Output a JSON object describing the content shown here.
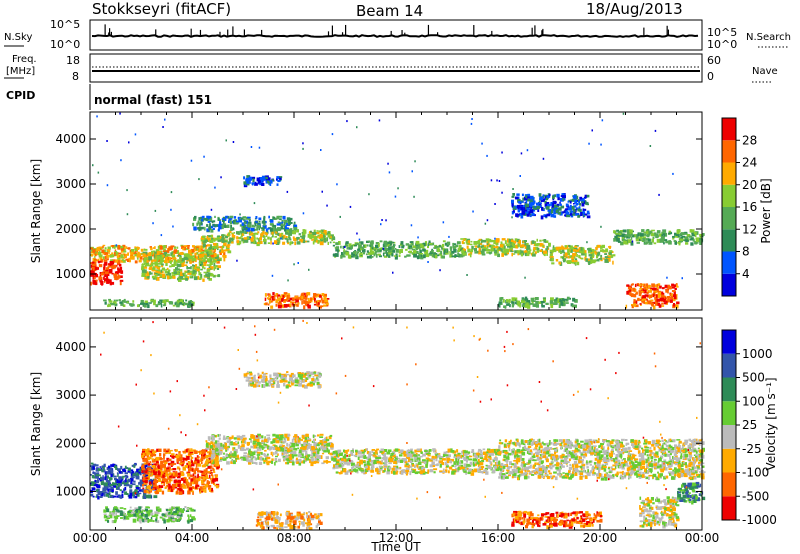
{
  "header": {
    "station": "Stokkseyri (fitACF)",
    "beam": "Beam 14",
    "date": "18/Aug/2013"
  },
  "noise_panel": {
    "left_label": "N.Sky",
    "left_ticks": [
      "10^5",
      "10^0"
    ],
    "right_ticks": [
      "10^5",
      "10^0"
    ],
    "right_label": "N.Search"
  },
  "freq_panel": {
    "left_label_1": "Freq.",
    "left_label_2": "[MHz]",
    "left_ticks": [
      "18",
      "8"
    ],
    "right_ticks": [
      "60",
      "0"
    ],
    "right_label": "Nave"
  },
  "cpid": {
    "label": "CPID",
    "mode": "normal (fast) 151"
  },
  "chart_data": [
    {
      "type": "heatmap",
      "quantity": "Power",
      "ylabel": "Slant Range [km]",
      "xlabel": "",
      "x_ticks": [
        "00:00",
        "04:00",
        "08:00",
        "12:00",
        "16:00",
        "20:00",
        "00:00"
      ],
      "y_ticks": [
        "1000",
        "2000",
        "3000",
        "4000"
      ],
      "ylim": [
        200,
        4600
      ],
      "xlim": [
        0,
        24
      ],
      "colorbar": {
        "label": "Power [dB]",
        "ticks": [
          "28",
          "24",
          "20",
          "16",
          "12",
          "8",
          "4"
        ],
        "colors": [
          "#0000dd",
          "#0055ff",
          "#2e8b57",
          "#55aa55",
          "#88cc33",
          "#ffaa00",
          "#ff6600",
          "#ee0000"
        ]
      },
      "echo_bands": [
        {
          "t0": 0.0,
          "t1": 5.3,
          "r0": 1300,
          "r1": 1650,
          "level": 5
        },
        {
          "t0": 0.0,
          "t1": 1.2,
          "r0": 800,
          "r1": 1300,
          "level": 7
        },
        {
          "t0": 2.0,
          "t1": 5.0,
          "r0": 900,
          "r1": 1500,
          "level": 4
        },
        {
          "t0": 4.3,
          "t1": 5.4,
          "r0": 1500,
          "r1": 1900,
          "level": 4
        },
        {
          "t0": 5.3,
          "t1": 9.5,
          "r0": 1700,
          "r1": 2000,
          "level": 4
        },
        {
          "t0": 9.5,
          "t1": 14.5,
          "r0": 1400,
          "r1": 1750,
          "level": 3
        },
        {
          "t0": 14.5,
          "t1": 18.0,
          "r0": 1450,
          "r1": 1800,
          "level": 4
        },
        {
          "t0": 18.0,
          "t1": 20.5,
          "r0": 1250,
          "r1": 1650,
          "level": 4
        },
        {
          "t0": 20.5,
          "t1": 24.0,
          "r0": 1700,
          "r1": 2000,
          "level": 3
        },
        {
          "t0": 6.8,
          "t1": 9.3,
          "r0": 300,
          "r1": 600,
          "level": 6
        },
        {
          "t0": 16.0,
          "t1": 19.0,
          "r0": 300,
          "r1": 500,
          "level": 3
        },
        {
          "t0": 21.0,
          "t1": 23.0,
          "r0": 300,
          "r1": 800,
          "level": 6
        },
        {
          "t0": 0.5,
          "t1": 4.0,
          "r0": 300,
          "r1": 450,
          "level": 3
        },
        {
          "t0": 4.0,
          "t1": 8.0,
          "r0": 2000,
          "r1": 2300,
          "level": 2
        },
        {
          "t0": 16.5,
          "t1": 19.5,
          "r0": 2300,
          "r1": 2800,
          "level": 1
        },
        {
          "t0": 6.0,
          "t1": 7.5,
          "r0": 3000,
          "r1": 3200,
          "level": 1
        }
      ]
    },
    {
      "type": "heatmap",
      "quantity": "Velocity",
      "ylabel": "Slant Range [km]",
      "xlabel": "Time UT",
      "x_ticks": [
        "00:00",
        "04:00",
        "08:00",
        "12:00",
        "16:00",
        "20:00",
        "00:00"
      ],
      "y_ticks": [
        "1000",
        "2000",
        "3000",
        "4000"
      ],
      "ylim": [
        200,
        4600
      ],
      "xlim": [
        0,
        24
      ],
      "colorbar": {
        "label": "Velocity [m s⁻¹]",
        "ticks": [
          "1000",
          "500",
          "100",
          "25",
          "-25",
          "-100",
          "-500",
          "-1000"
        ],
        "colors": [
          "#ee0000",
          "#ff6600",
          "#ffaa00",
          "#bbbbbb",
          "#66cc33",
          "#2e8b57",
          "#3355aa",
          "#0000dd"
        ]
      },
      "echo_bands": [
        {
          "t0": 0.0,
          "t1": 2.5,
          "r0": 900,
          "r1": 1600,
          "level": 6
        },
        {
          "t0": 2.0,
          "t1": 5.0,
          "r0": 1000,
          "r1": 1900,
          "level": 1
        },
        {
          "t0": 4.5,
          "t1": 9.5,
          "r0": 1600,
          "r1": 2200,
          "level": 3
        },
        {
          "t0": 9.5,
          "t1": 16.0,
          "r0": 1400,
          "r1": 1900,
          "level": 3
        },
        {
          "t0": 16.0,
          "t1": 24.0,
          "r0": 1300,
          "r1": 2100,
          "level": 3
        },
        {
          "t0": 0.5,
          "t1": 4.0,
          "r0": 400,
          "r1": 700,
          "level": 4
        },
        {
          "t0": 6.5,
          "t1": 9.0,
          "r0": 250,
          "r1": 600,
          "level": 2
        },
        {
          "t0": 16.5,
          "t1": 20.0,
          "r0": 300,
          "r1": 600,
          "level": 1
        },
        {
          "t0": 21.5,
          "t1": 23.0,
          "r0": 300,
          "r1": 900,
          "level": 3
        },
        {
          "t0": 23.0,
          "t1": 24.0,
          "r0": 800,
          "r1": 1200,
          "level": 5
        },
        {
          "t0": 6.0,
          "t1": 9.0,
          "r0": 3200,
          "r1": 3500,
          "level": 3
        }
      ]
    }
  ]
}
